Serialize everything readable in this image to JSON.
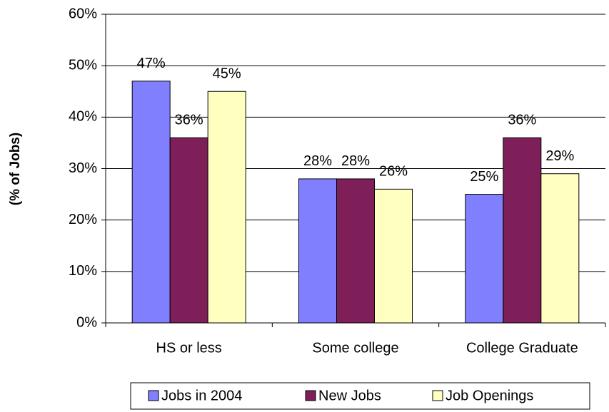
{
  "chart_data": {
    "type": "bar",
    "y_label": "(% of Jobs)",
    "categories": [
      "HS or less",
      "Some college",
      "College Graduate"
    ],
    "series": [
      {
        "name": "Jobs in 2004",
        "color": "#8080ff",
        "values": [
          47,
          28,
          25
        ],
        "value_labels": [
          "47%",
          "28%",
          "25%"
        ]
      },
      {
        "name": "New Jobs",
        "color": "#7f1f5a",
        "values": [
          36,
          28,
          36
        ],
        "value_labels": [
          "36%",
          "28%",
          "36%"
        ]
      },
      {
        "name": "Job Openings",
        "color": "#ffffc0",
        "values": [
          45,
          26,
          29
        ],
        "value_labels": [
          "45%",
          "26%",
          "29%"
        ]
      }
    ],
    "ylim": [
      0,
      60
    ],
    "yticks": [
      {
        "value": 0,
        "label": "0%"
      },
      {
        "value": 10,
        "label": "10%"
      },
      {
        "value": 20,
        "label": "20%"
      },
      {
        "value": 30,
        "label": "30%"
      },
      {
        "value": 40,
        "label": "40%"
      },
      {
        "value": 50,
        "label": "50%"
      },
      {
        "value": 60,
        "label": "60%"
      }
    ],
    "grid": true,
    "legend": "bottom"
  }
}
